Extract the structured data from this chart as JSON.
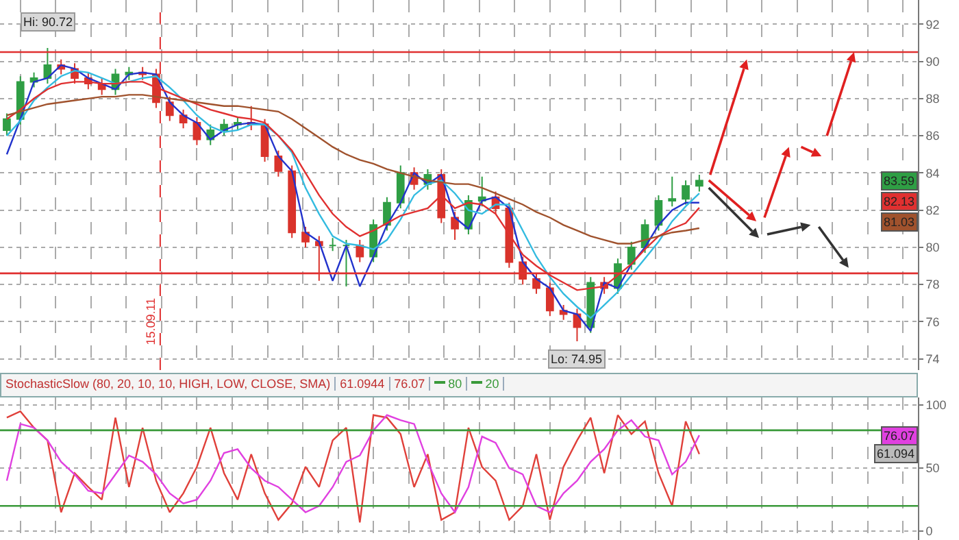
{
  "chart_data": [
    {
      "type": "candlestick",
      "categories": [
        null,
        null,
        null,
        null,
        null,
        null,
        null,
        null,
        null,
        null,
        null,
        null,
        null,
        null,
        null,
        null,
        null,
        null,
        null,
        null,
        null,
        null,
        null,
        null,
        null,
        null,
        null,
        null,
        null,
        null,
        null,
        null,
        null,
        null,
        null,
        null,
        null,
        null,
        null,
        null,
        null,
        null,
        null,
        null,
        null,
        null,
        null,
        null,
        null,
        null,
        null,
        null
      ],
      "ylim": [
        73.4,
        93.3
      ],
      "yticks": [
        74,
        76,
        78,
        80,
        82,
        84,
        86,
        88,
        90,
        92
      ],
      "grid": true,
      "tick_labels": "y",
      "series": [
        {
          "colors": [
            "#2f9e44",
            "#2f9e44",
            "#2f9e44",
            "#2f9e44",
            "#d9332b",
            "#d9332b",
            "#d9332b",
            "#d9332b",
            "#2f9e44",
            "#2f9e44",
            "#d9332b",
            "#d9332b",
            "#d9332b",
            "#d9332b",
            "#d9332b",
            "#2f9e44",
            "#2f9e44",
            "#2f9e44",
            "#d9332b",
            "#d9332b",
            "#d9332b",
            "#d9332b",
            "#d9332b",
            "#d9332b",
            "#2f9e44",
            "#2f9e44",
            "#d9332b",
            "#2f9e44",
            "#2f9e44",
            "#2f9e44",
            "#d9332b",
            "#2f9e44",
            "#d9332b",
            "#d9332b",
            "#2f9e44",
            "#2f9e44",
            "#d9332b",
            "#d9332b",
            "#d9332b",
            "#d9332b",
            "#d9332b",
            "#d9332b",
            "#d9332b",
            "#2f9e44",
            "#d9332b",
            "#2f9e44",
            "#2f9e44",
            "#2f9e44",
            "#2f9e44",
            "#2f9e44",
            "#2f9e44",
            "#2f9e44"
          ],
          "ohlc": [
            [
              86.3,
              87.2,
              86.0,
              86.9
            ],
            [
              86.9,
              89.2,
              86.6,
              88.9
            ],
            [
              88.9,
              89.4,
              88.6,
              89.1
            ],
            [
              89.1,
              90.72,
              88.8,
              89.8
            ],
            [
              89.8,
              90.1,
              89.3,
              89.6
            ],
            [
              89.6,
              89.9,
              88.8,
              89.1
            ],
            [
              89.1,
              89.4,
              88.5,
              88.8
            ],
            [
              88.8,
              89.1,
              88.2,
              88.5
            ],
            [
              88.5,
              89.6,
              88.2,
              89.3
            ],
            [
              89.3,
              89.7,
              89.0,
              89.4
            ],
            [
              89.4,
              89.7,
              89.0,
              89.3
            ],
            [
              89.3,
              89.6,
              87.5,
              87.8
            ],
            [
              87.8,
              88.1,
              86.8,
              87.1
            ],
            [
              87.1,
              87.4,
              86.4,
              86.7
            ],
            [
              86.7,
              87.0,
              85.5,
              85.8
            ],
            [
              85.8,
              86.6,
              85.5,
              86.3
            ],
            [
              86.3,
              86.9,
              86.0,
              86.6
            ],
            [
              86.6,
              87.0,
              86.3,
              86.7
            ],
            [
              86.7,
              87.6,
              86.3,
              86.6
            ],
            [
              86.6,
              86.9,
              84.6,
              84.9
            ],
            [
              84.9,
              85.2,
              83.8,
              84.1
            ],
            [
              84.1,
              84.4,
              80.5,
              80.8
            ],
            [
              80.8,
              81.1,
              80.0,
              80.3
            ],
            [
              80.3,
              80.6,
              78.2,
              80.1
            ],
            [
              80.1,
              80.5,
              79.8,
              80.1
            ],
            [
              80.1,
              80.4,
              77.9,
              80.1
            ],
            [
              80.1,
              80.4,
              79.2,
              79.5
            ],
            [
              79.5,
              81.5,
              79.2,
              81.2
            ],
            [
              81.2,
              82.7,
              80.9,
              82.4
            ],
            [
              82.4,
              84.4,
              82.1,
              84.0
            ],
            [
              84.0,
              84.3,
              83.1,
              83.4
            ],
            [
              83.4,
              84.2,
              83.1,
              83.9
            ],
            [
              83.9,
              84.2,
              81.3,
              81.6
            ],
            [
              81.6,
              81.9,
              80.4,
              81.0
            ],
            [
              81.0,
              82.8,
              80.7,
              82.5
            ],
            [
              82.5,
              83.8,
              82.2,
              82.7
            ],
            [
              82.7,
              83.0,
              81.8,
              82.1
            ],
            [
              82.1,
              82.4,
              78.9,
              79.2
            ],
            [
              79.2,
              79.5,
              78.0,
              78.3
            ],
            [
              78.3,
              78.6,
              77.5,
              77.8
            ],
            [
              77.8,
              78.1,
              76.3,
              76.6
            ],
            [
              76.6,
              76.9,
              76.1,
              76.4
            ],
            [
              76.4,
              76.7,
              74.95,
              75.7
            ],
            [
              75.7,
              78.4,
              75.4,
              78.1
            ],
            [
              78.1,
              78.4,
              77.5,
              77.8
            ],
            [
              77.8,
              79.4,
              77.5,
              79.1
            ],
            [
              79.1,
              80.3,
              78.8,
              80.0
            ],
            [
              80.0,
              81.5,
              79.7,
              81.2
            ],
            [
              81.2,
              82.8,
              80.9,
              82.5
            ],
            [
              82.5,
              83.8,
              82.2,
              82.6
            ],
            [
              82.6,
              83.6,
              82.3,
              83.3
            ],
            [
              83.3,
              83.9,
              83.0,
              83.59
            ]
          ]
        },
        {
          "type": "line",
          "color": "#2233cc",
          "values": [
            85.0,
            86.9,
            88.9,
            89.1,
            89.8,
            89.6,
            89.1,
            88.8,
            88.5,
            89.3,
            89.4,
            89.3,
            87.8,
            87.1,
            86.7,
            85.8,
            86.3,
            86.6,
            86.7,
            86.6,
            84.9,
            84.1,
            80.8,
            80.3,
            78.2,
            80.1,
            77.9,
            79.5,
            81.2,
            82.4,
            84.0,
            83.4,
            83.9,
            81.6,
            81.0,
            82.5,
            82.7,
            82.1,
            79.2,
            78.3,
            77.8,
            76.6,
            76.4,
            75.5,
            78.1,
            77.8,
            79.1,
            80.0,
            81.2,
            82.0,
            82.4,
            82.4
          ]
        },
        {
          "type": "line",
          "color": "#33bbe0",
          "values": [
            86.0,
            86.8,
            87.9,
            88.6,
            89.2,
            89.5,
            89.4,
            89.1,
            88.8,
            88.9,
            89.1,
            89.2,
            88.6,
            87.9,
            87.1,
            86.5,
            86.2,
            86.3,
            86.6,
            86.6,
            86.0,
            85.1,
            83.2,
            81.8,
            80.6,
            80.2,
            80.1,
            79.9,
            80.4,
            81.5,
            82.8,
            83.4,
            83.6,
            82.9,
            82.0,
            81.8,
            82.3,
            82.3,
            80.9,
            79.5,
            78.4,
            77.5,
            76.8,
            76.2,
            76.9,
            77.6,
            78.5,
            79.4,
            80.3,
            81.4,
            82.2,
            82.9
          ]
        },
        {
          "type": "line",
          "color": "#e03030",
          "values": [
            86.9,
            87.4,
            88.0,
            88.5,
            88.8,
            88.9,
            88.9,
            88.8,
            88.8,
            88.9,
            88.9,
            88.6,
            88.3,
            88.0,
            87.7,
            87.4,
            87.2,
            87.0,
            86.9,
            86.7,
            86.0,
            85.2,
            84.0,
            82.8,
            81.8,
            81.1,
            80.6,
            80.9,
            81.3,
            81.7,
            81.9,
            82.1,
            82.8,
            82.1,
            82.4,
            82.3,
            81.8,
            80.7,
            79.6,
            79.0,
            78.5,
            78.1,
            77.7,
            77.8,
            77.9,
            78.5,
            79.1,
            79.9,
            80.6,
            81.0,
            81.3,
            82.13
          ]
        },
        {
          "type": "line",
          "color": "#a0522d",
          "values": [
            87.1,
            87.3,
            87.5,
            87.7,
            87.8,
            87.9,
            88.0,
            88.1,
            88.1,
            88.2,
            88.2,
            88.1,
            88.0,
            87.9,
            87.8,
            87.7,
            87.6,
            87.6,
            87.5,
            87.4,
            87.3,
            86.9,
            86.4,
            85.9,
            85.4,
            85.0,
            84.7,
            84.5,
            84.2,
            84.0,
            83.8,
            83.6,
            83.5,
            83.4,
            83.4,
            83.2,
            82.9,
            82.6,
            82.3,
            81.9,
            81.6,
            81.2,
            80.9,
            80.6,
            80.4,
            80.2,
            80.2,
            80.4,
            80.6,
            80.8,
            80.9,
            81.03
          ]
        }
      ],
      "ref_lines": [
        {
          "axis": "y",
          "value": 90.5,
          "color": "#e03030"
        },
        {
          "axis": "y",
          "value": 78.6,
          "color": "#e03030"
        }
      ],
      "annotations": [
        "Hi: 90.72",
        "Lo: 74.95",
        "15.09.11",
        "83.59",
        "82.13",
        "81.03"
      ]
    },
    {
      "type": "line",
      "title": "StochasticSlow (80, 20, 10, 10, HIGH, LOW, CLOSE, SMA)",
      "categories": [
        null,
        null,
        null,
        null,
        null,
        null,
        null,
        null,
        null,
        null,
        null,
        null,
        null,
        null,
        null,
        null,
        null,
        null,
        null,
        null,
        null,
        null,
        null,
        null,
        null,
        null,
        null,
        null,
        null,
        null,
        null,
        null,
        null,
        null,
        null,
        null,
        null,
        null,
        null,
        null,
        null,
        null,
        null,
        null,
        null,
        null,
        null,
        null,
        null,
        null,
        null,
        null
      ],
      "ylim": [
        -7,
        106
      ],
      "yticks": [
        0,
        50,
        100
      ],
      "grid": true,
      "tick_labels": "y",
      "legend": "top",
      "series": [
        {
          "color": "#e0403a",
          "values": [
            90,
            95,
            82,
            72,
            15,
            46,
            35,
            25,
            90,
            35,
            82,
            40,
            15,
            30,
            51,
            82,
            46,
            25,
            61,
            30,
            9,
            22,
            51,
            35,
            72,
            82,
            7,
            92,
            90,
            77,
            35,
            61,
            9,
            15,
            82,
            51,
            40,
            9,
            20,
            61,
            9,
            51,
            72,
            90,
            46,
            92,
            77,
            87,
            46,
            20,
            87,
            61.0944
          ]
        },
        {
          "color": "#e040e0",
          "values": [
            40,
            85,
            82,
            72,
            55,
            45,
            32,
            30,
            45,
            60,
            55,
            45,
            30,
            22,
            25,
            40,
            62,
            65,
            50,
            40,
            35,
            25,
            15,
            20,
            35,
            55,
            60,
            80,
            92,
            88,
            85,
            55,
            30,
            15,
            35,
            75,
            70,
            50,
            45,
            20,
            15,
            30,
            40,
            55,
            65,
            80,
            88,
            75,
            72,
            45,
            55,
            76.07
          ]
        }
      ],
      "ref_lines": [
        {
          "axis": "y",
          "value": 80,
          "label": "80",
          "color": "#3a9a3a"
        },
        {
          "axis": "y",
          "value": 20,
          "label": "20",
          "color": "#3a9a3a"
        }
      ],
      "annotations": [
        "61.0944",
        "76.07",
        "76.07",
        "61.094"
      ]
    }
  ]
}
